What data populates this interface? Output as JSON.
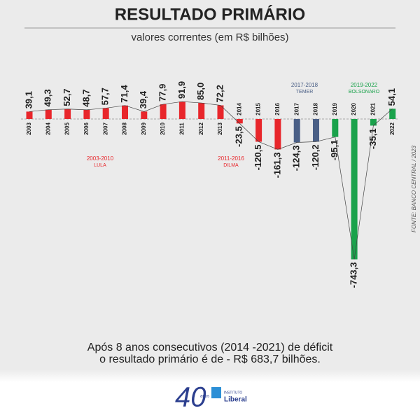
{
  "chart_data": {
    "type": "bar",
    "title": "RESULTADO PRIMÁRIO",
    "subtitle": "valores correntes (em R$ bilhões)",
    "categories": [
      "2003",
      "2004",
      "2005",
      "2006",
      "2007",
      "2008",
      "2009",
      "2010",
      "2011",
      "2012",
      "2013",
      "2014",
      "2015",
      "2016",
      "2017",
      "2018",
      "2019",
      "2020",
      "2021",
      "2022"
    ],
    "values": [
      39.1,
      49.3,
      52.7,
      48.7,
      57.7,
      71.4,
      39.4,
      77.9,
      91.9,
      85.0,
      72.2,
      -23.5,
      -120.5,
      -161.3,
      -124.3,
      -120.2,
      -95.1,
      -743.3,
      -35.1,
      54.1
    ],
    "value_labels": [
      "39,1",
      "49,3",
      "52,7",
      "48,7",
      "57,7",
      "71,4",
      "39,4",
      "77,9",
      "91,9",
      "85,0",
      "72,2",
      "-23,5",
      "-120,5",
      "-161,3",
      "-124,3",
      "-120,2",
      "-95,1",
      "-743,3",
      "-35,1",
      "54,1"
    ],
    "colors": [
      "#e8262b",
      "#e8262b",
      "#e8262b",
      "#e8262b",
      "#e8262b",
      "#e8262b",
      "#e8262b",
      "#e8262b",
      "#e8262b",
      "#e8262b",
      "#e8262b",
      "#e8262b",
      "#e8262b",
      "#e8262b",
      "#4a5f86",
      "#4a5f86",
      "#1aa24b",
      "#1aa24b",
      "#1aa24b",
      "#1aa24b"
    ],
    "ylim": [
      -760,
      100
    ],
    "periods": [
      {
        "years": "2003-2010",
        "name": "LULA",
        "color": "#e8262b"
      },
      {
        "years": "2011-2016",
        "name": "DILMA",
        "color": "#e8262b"
      },
      {
        "years": "2017-2018",
        "name": "TEMER",
        "color": "#4a5f86"
      },
      {
        "years": "2019-2022",
        "name": "BOLSONARO",
        "color": "#1aa24b"
      }
    ],
    "source": "FONTE: BANCO CENTRAL / 2023",
    "caption": [
      "Após 8 anos consecutivos (2014 -2021) de déficit",
      "o resultado primário é de - R$ 683,7 bilhões."
    ],
    "logo": {
      "number": "40",
      "years": "anos",
      "institute": "INSTITUTO",
      "name": "Liberal"
    }
  }
}
